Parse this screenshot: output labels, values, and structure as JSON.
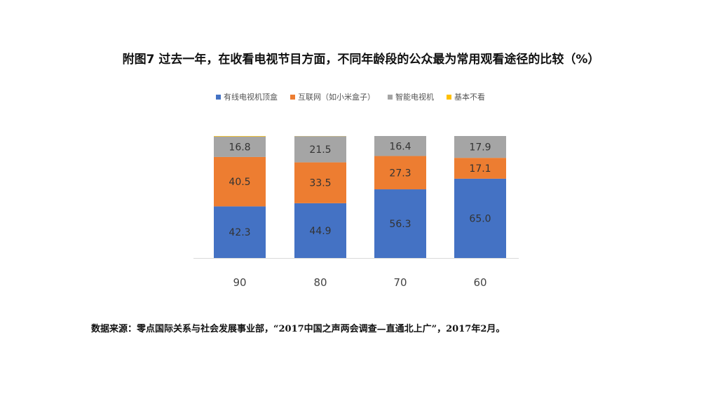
{
  "title": "附图7 过去一年，在收看电视节目方面，不同年龄段的公众最为常用观看途径的比较（%）",
  "source": "数据来源：零点国际关系与社会发展事业部，“2017中国之声两会调查—直通北上广”，2017年2月。",
  "colors": {
    "cable": "#4472C4",
    "internet": "#ED7D31",
    "smart_tv": "#A5A5A5",
    "none": "#FFC000"
  },
  "chart_data": {
    "type": "bar",
    "stacked": true,
    "title": "附图7 过去一年，在收看电视节目方面，不同年龄段的公众最为常用观看途径的比较（%）",
    "categories": [
      "90",
      "80",
      "70",
      "60"
    ],
    "series": [
      {
        "name": "有线电视机顶盒",
        "color": "#4472C4",
        "values": [
          42.3,
          44.9,
          56.3,
          65.0
        ]
      },
      {
        "name": "互联网（如小米盒子）",
        "color": "#ED7D31",
        "values": [
          40.5,
          33.5,
          27.3,
          17.1
        ]
      },
      {
        "name": "智能电视机",
        "color": "#A5A5A5",
        "values": [
          16.8,
          21.5,
          16.4,
          17.9
        ]
      },
      {
        "name": "基本不看",
        "color": "#FFC000",
        "values": [
          0.4,
          0.1,
          0.0,
          0.0
        ]
      }
    ],
    "data_labels": [
      [
        "42.3",
        "44.9",
        "56.3",
        "65.0"
      ],
      [
        "40.5",
        "33.5",
        "27.3",
        "17.1"
      ],
      [
        "16.8",
        "21.5",
        "16.4",
        "17.9"
      ],
      []
    ],
    "ylim": [
      0,
      100
    ],
    "grid": false,
    "legend": "top-center"
  }
}
